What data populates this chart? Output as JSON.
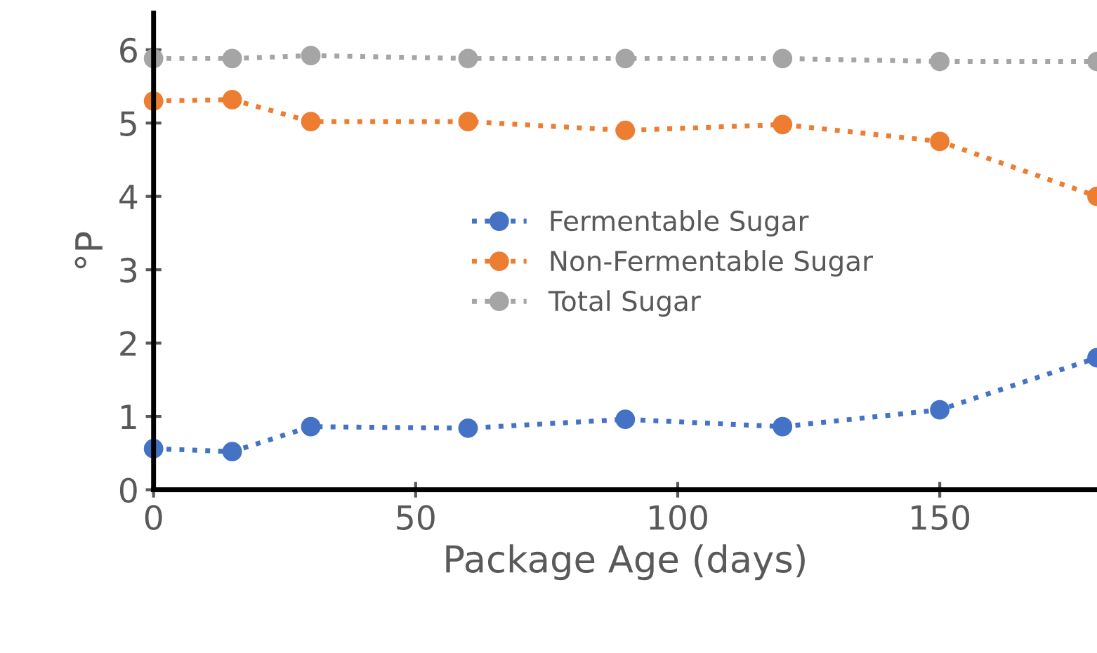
{
  "chart_data": {
    "type": "line",
    "xlabel": "Package Age (days)",
    "ylabel": "°P",
    "x": [
      0,
      15,
      30,
      60,
      90,
      120,
      150,
      180
    ],
    "series": [
      {
        "name": "Fermentable Sugar",
        "color": "#4472c4",
        "values": [
          0.56,
          0.52,
          0.86,
          0.84,
          0.96,
          0.86,
          1.09,
          1.8
        ]
      },
      {
        "name": "Non-Fermentable Sugar",
        "color": "#ed7d31",
        "values": [
          5.3,
          5.32,
          5.02,
          5.02,
          4.9,
          4.98,
          4.75,
          4.0
        ]
      },
      {
        "name": "Total Sugar",
        "color": "#a5a5a5",
        "values": [
          5.88,
          5.88,
          5.92,
          5.88,
          5.88,
          5.88,
          5.84,
          5.84
        ]
      }
    ],
    "xlim": [
      0,
      180
    ],
    "ylim": [
      0,
      6.5
    ],
    "xticks": [
      0,
      50,
      100,
      150
    ],
    "yticks": [
      0,
      1,
      2,
      3,
      4,
      5,
      6
    ],
    "marker": "circle",
    "line_style": "dotted",
    "legend": "center",
    "grid": false
  }
}
